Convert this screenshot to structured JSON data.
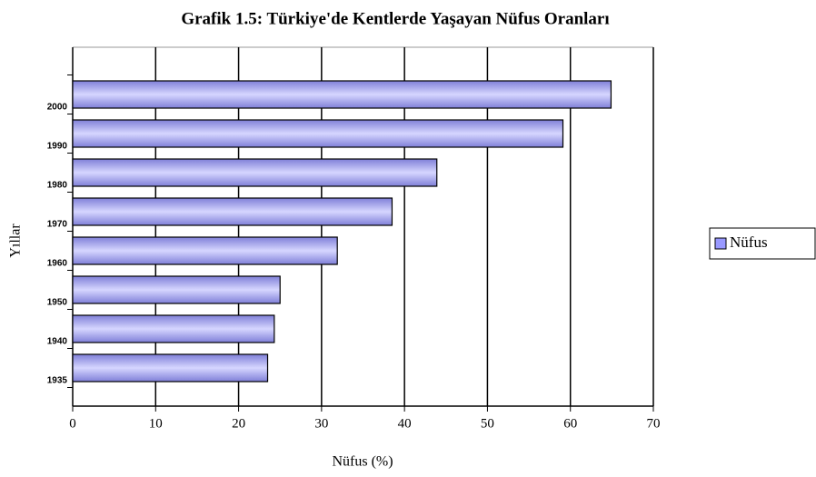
{
  "chart_data": {
    "type": "barh",
    "title": "Grafik 1.5: Türkiye'de Kentlerde Yaşayan Nüfus Oranları",
    "x_label": "Nüfus (%)",
    "y_label": "Yıllar",
    "categories": [
      "1935",
      "1940",
      "1950",
      "1960",
      "1970",
      "1980",
      "1990",
      "2000"
    ],
    "series": [
      {
        "name": "Nüfus",
        "color": "#9999ff",
        "values": [
          23.5,
          24.3,
          25,
          31.9,
          38.5,
          43.9,
          59.1,
          64.9
        ]
      }
    ],
    "xlim": [
      0,
      70
    ],
    "xticks": [
      0,
      10,
      20,
      30,
      40,
      50,
      60,
      70
    ],
    "grid": true,
    "legend": "right"
  }
}
